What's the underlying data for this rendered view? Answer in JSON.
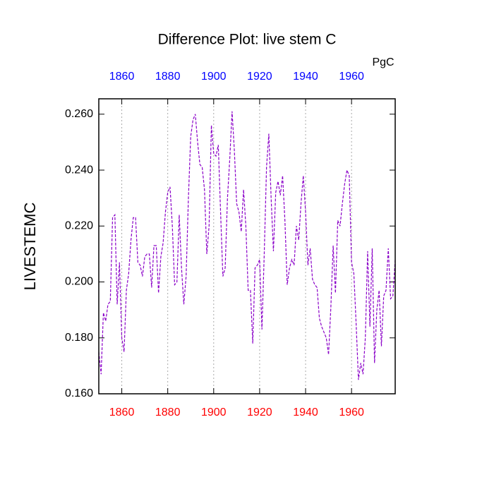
{
  "chart_data": {
    "type": "line",
    "title": "Difference Plot: live stem C",
    "y_label": "LIVESTEMC",
    "units": "PgC",
    "x": [
      1850,
      1851,
      1852,
      1853,
      1854,
      1855,
      1856,
      1857,
      1858,
      1859,
      1860,
      1861,
      1862,
      1863,
      1864,
      1865,
      1866,
      1867,
      1868,
      1869,
      1870,
      1871,
      1872,
      1873,
      1874,
      1875,
      1876,
      1877,
      1878,
      1879,
      1880,
      1881,
      1882,
      1883,
      1884,
      1885,
      1886,
      1887,
      1888,
      1889,
      1890,
      1891,
      1892,
      1893,
      1894,
      1895,
      1896,
      1897,
      1898,
      1899,
      1900,
      1901,
      1902,
      1903,
      1904,
      1905,
      1906,
      1907,
      1908,
      1909,
      1910,
      1911,
      1912,
      1913,
      1914,
      1915,
      1916,
      1917,
      1918,
      1919,
      1920,
      1921,
      1922,
      1923,
      1924,
      1925,
      1926,
      1927,
      1928,
      1929,
      1930,
      1931,
      1932,
      1933,
      1934,
      1935,
      1936,
      1937,
      1938,
      1939,
      1940,
      1941,
      1942,
      1943,
      1944,
      1945,
      1946,
      1947,
      1948,
      1949,
      1950,
      1951,
      1952,
      1953,
      1954,
      1955,
      1956,
      1957,
      1958,
      1959,
      1960,
      1961,
      1962,
      1963,
      1964,
      1965,
      1966,
      1967,
      1968,
      1969,
      1970,
      1971,
      1972,
      1973,
      1974,
      1975,
      1976,
      1977,
      1978,
      1979
    ],
    "values": [
      0.175,
      0.167,
      0.189,
      0.186,
      0.192,
      0.193,
      0.223,
      0.224,
      0.192,
      0.207,
      0.18,
      0.175,
      0.197,
      0.203,
      0.215,
      0.223,
      0.223,
      0.207,
      0.206,
      0.202,
      0.209,
      0.21,
      0.21,
      0.198,
      0.213,
      0.213,
      0.196,
      0.209,
      0.214,
      0.225,
      0.232,
      0.234,
      0.22,
      0.199,
      0.2,
      0.224,
      0.205,
      0.192,
      0.202,
      0.23,
      0.252,
      0.258,
      0.26,
      0.25,
      0.242,
      0.241,
      0.233,
      0.21,
      0.22,
      0.256,
      0.246,
      0.245,
      0.249,
      0.225,
      0.202,
      0.205,
      0.23,
      0.244,
      0.261,
      0.247,
      0.228,
      0.225,
      0.218,
      0.233,
      0.22,
      0.197,
      0.197,
      0.178,
      0.205,
      0.206,
      0.208,
      0.183,
      0.21,
      0.241,
      0.253,
      0.23,
      0.211,
      0.232,
      0.236,
      0.231,
      0.238,
      0.222,
      0.199,
      0.205,
      0.208,
      0.206,
      0.22,
      0.215,
      0.228,
      0.238,
      0.225,
      0.206,
      0.212,
      0.201,
      0.199,
      0.198,
      0.187,
      0.184,
      0.182,
      0.18,
      0.174,
      0.191,
      0.213,
      0.196,
      0.222,
      0.22,
      0.228,
      0.235,
      0.24,
      0.238,
      0.207,
      0.203,
      0.185,
      0.165,
      0.171,
      0.167,
      0.18,
      0.211,
      0.184,
      0.212,
      0.171,
      0.19,
      0.197,
      0.177,
      0.195,
      0.197,
      0.212,
      0.194,
      0.195,
      0.208
    ],
    "color": "#8a00c8",
    "dashed": true,
    "xlim": [
      1850,
      1979
    ],
    "ylim": [
      0.16,
      0.2655
    ],
    "xticks": [
      1860,
      1880,
      1900,
      1920,
      1940,
      1960
    ],
    "yticks": [
      {
        "value": 0.16,
        "label": "0.160"
      },
      {
        "value": 0.18,
        "label": "0.180"
      },
      {
        "value": 0.2,
        "label": "0.200"
      },
      {
        "value": 0.22,
        "label": "0.220"
      },
      {
        "value": 0.24,
        "label": "0.240"
      },
      {
        "value": 0.26,
        "label": "0.260"
      }
    ],
    "top_tick_color": "#0000ff",
    "bottom_tick_color": "#ff0000",
    "grid": true
  }
}
